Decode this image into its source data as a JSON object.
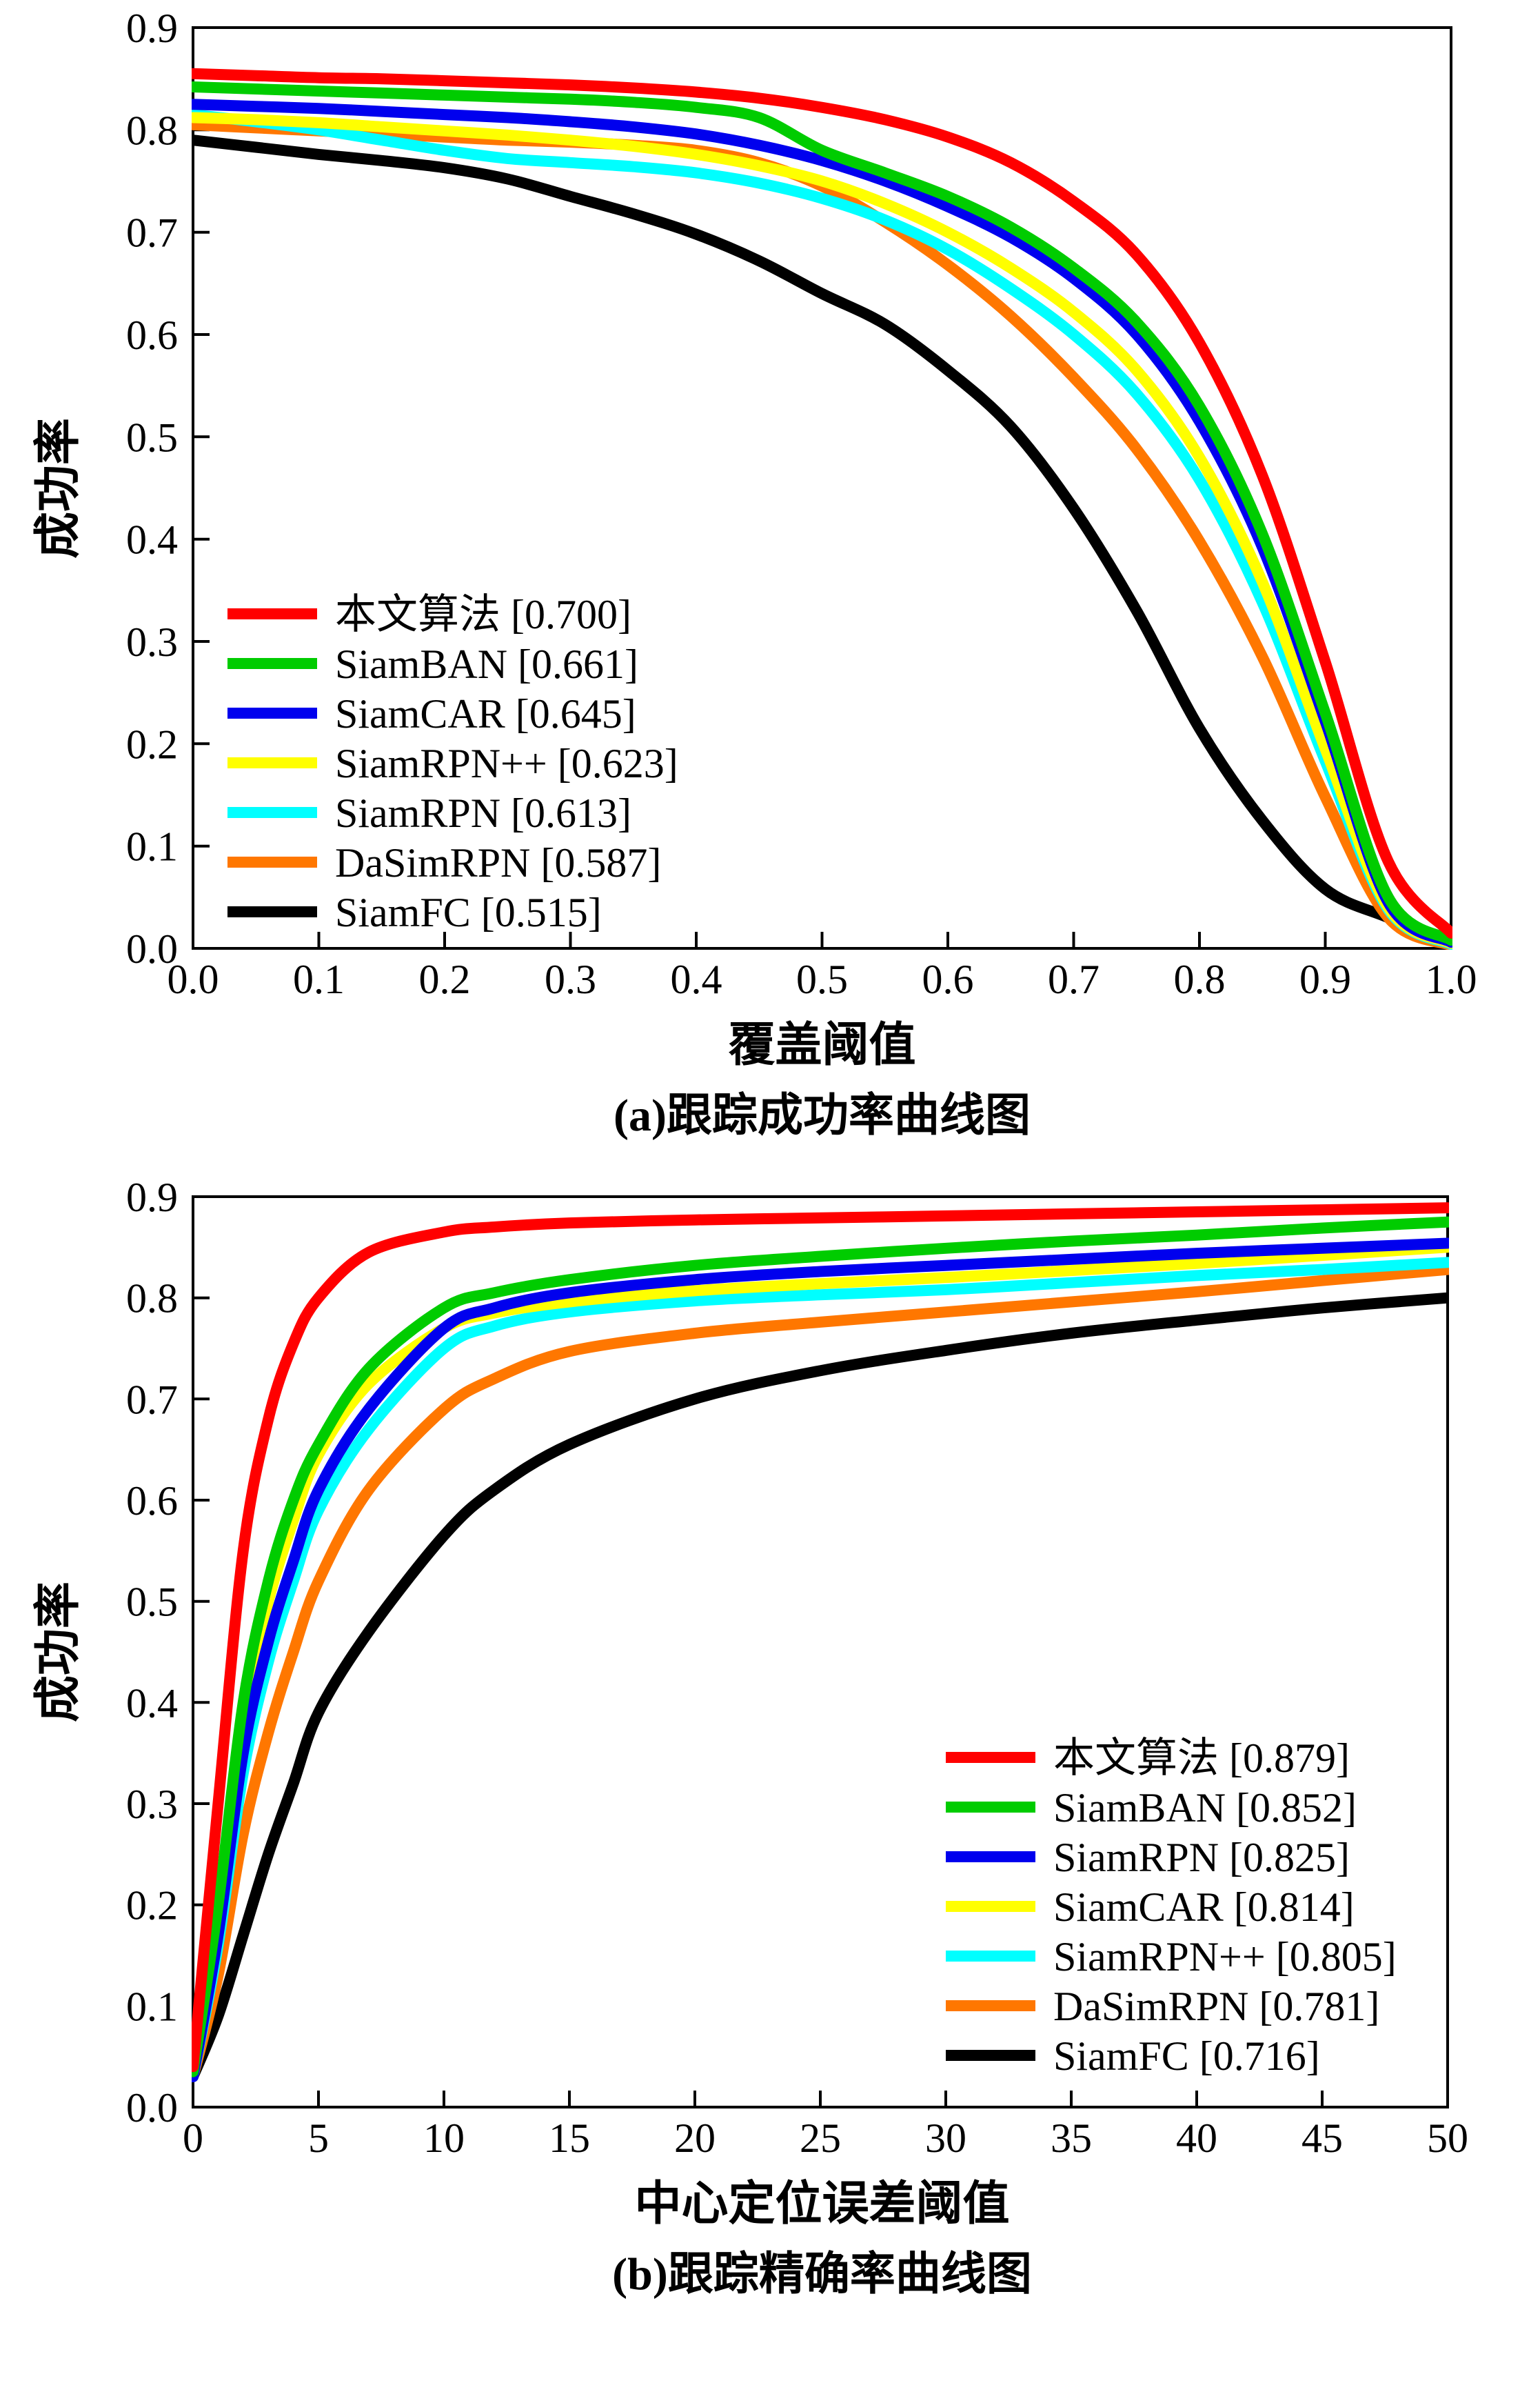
{
  "figure": {
    "background": "#ffffff",
    "axis_color": "#000000"
  },
  "chart_data": [
    {
      "id": "success-plot",
      "type": "line",
      "title": "",
      "xlabel": "覆盖阈值",
      "ylabel": "成功率",
      "caption": "(a)跟踪成功率曲线图",
      "xlim": [
        0.0,
        1.0
      ],
      "ylim": [
        0.0,
        0.9
      ],
      "grid": false,
      "legend_position": "lower-left",
      "xticks": [
        "0.0",
        "0.1",
        "0.2",
        "0.3",
        "0.4",
        "0.5",
        "0.6",
        "0.7",
        "0.8",
        "0.9",
        "1.0"
      ],
      "yticks": [
        "0.0",
        "0.1",
        "0.2",
        "0.3",
        "0.4",
        "0.5",
        "0.6",
        "0.7",
        "0.8",
        "0.9"
      ],
      "x": [
        0,
        0.05,
        0.1,
        0.15,
        0.2,
        0.25,
        0.3,
        0.35,
        0.4,
        0.45,
        0.5,
        0.55,
        0.6,
        0.65,
        0.7,
        0.75,
        0.8,
        0.85,
        0.9,
        0.95,
        1.0
      ],
      "series": [
        {
          "key": "ours",
          "name": "本文算法",
          "score": 0.7,
          "label": "本文算法 [0.700]",
          "color": "#ff0000",
          "values": [
            0.855,
            0.853,
            0.851,
            0.85,
            0.848,
            0.846,
            0.844,
            0.841,
            0.837,
            0.831,
            0.822,
            0.81,
            0.793,
            0.768,
            0.73,
            0.678,
            0.592,
            0.462,
            0.28,
            0.085,
            0.015
          ]
        },
        {
          "key": "siamban",
          "name": "SiamBAN",
          "score": 0.661,
          "label": "SiamBAN [0.661]",
          "color": "#00cc00",
          "values": [
            0.842,
            0.84,
            0.838,
            0.836,
            0.834,
            0.832,
            0.83,
            0.827,
            0.822,
            0.812,
            0.78,
            0.758,
            0.735,
            0.705,
            0.665,
            0.612,
            0.53,
            0.405,
            0.23,
            0.05,
            0.008
          ]
        },
        {
          "key": "siamcar",
          "name": "SiamCAR",
          "score": 0.645,
          "label": "SiamCAR [0.645]",
          "color": "#0000ee",
          "values": [
            0.825,
            0.823,
            0.821,
            0.818,
            0.815,
            0.812,
            0.808,
            0.803,
            0.796,
            0.785,
            0.77,
            0.75,
            0.725,
            0.695,
            0.655,
            0.6,
            0.515,
            0.392,
            0.222,
            0.045,
            0.006
          ]
        },
        {
          "key": "siamrpnpp",
          "name": "SiamRPN++",
          "score": 0.623,
          "label": "SiamRPN++ [0.623]",
          "color": "#ffff00",
          "values": [
            0.812,
            0.81,
            0.807,
            0.803,
            0.799,
            0.795,
            0.79,
            0.784,
            0.776,
            0.765,
            0.75,
            0.728,
            0.7,
            0.665,
            0.622,
            0.565,
            0.48,
            0.358,
            0.195,
            0.04,
            0.005
          ]
        },
        {
          "key": "siamrpn",
          "name": "SiamRPN",
          "score": 0.613,
          "label": "SiamRPN [0.613]",
          "color": "#00ffff",
          "values": [
            0.815,
            0.808,
            0.8,
            0.79,
            0.78,
            0.772,
            0.768,
            0.764,
            0.758,
            0.748,
            0.733,
            0.712,
            0.683,
            0.645,
            0.6,
            0.542,
            0.458,
            0.338,
            0.183,
            0.038,
            0.004
          ]
        },
        {
          "key": "dasimrpn",
          "name": "DaSimRPN",
          "score": 0.587,
          "label": "DaSimRPN [0.587]",
          "color": "#ff7700",
          "values": [
            0.805,
            0.802,
            0.799,
            0.796,
            0.793,
            0.79,
            0.788,
            0.785,
            0.78,
            0.768,
            0.745,
            0.71,
            0.668,
            0.618,
            0.558,
            0.488,
            0.398,
            0.285,
            0.148,
            0.03,
            0.003
          ]
        },
        {
          "key": "siamfc",
          "name": "SiamFC",
          "score": 0.515,
          "label": "SiamFC [0.515]",
          "color": "#000000",
          "values": [
            0.79,
            0.783,
            0.776,
            0.77,
            0.763,
            0.752,
            0.735,
            0.718,
            0.698,
            0.672,
            0.64,
            0.61,
            0.565,
            0.51,
            0.43,
            0.33,
            0.215,
            0.125,
            0.058,
            0.03,
            0.005
          ]
        }
      ]
    },
    {
      "id": "precision-plot",
      "type": "line",
      "title": "",
      "xlabel": "中心定位误差阈值",
      "ylabel": "成功率",
      "caption": "(b)跟踪精确率曲线图",
      "xlim": [
        0,
        50
      ],
      "ylim": [
        0.0,
        0.9
      ],
      "grid": false,
      "legend_position": "lower-right",
      "xticks": [
        "0",
        "5",
        "10",
        "15",
        "20",
        "25",
        "30",
        "35",
        "40",
        "45",
        "50"
      ],
      "yticks": [
        "0.0",
        "0.1",
        "0.2",
        "0.3",
        "0.4",
        "0.5",
        "0.6",
        "0.7",
        "0.8",
        "0.9"
      ],
      "x": [
        0,
        1,
        2,
        3,
        4,
        5,
        7,
        10,
        12,
        15,
        20,
        25,
        30,
        35,
        40,
        45,
        50
      ],
      "series": [
        {
          "key": "ours",
          "name": "本文算法",
          "score": 0.879,
          "label": "本文算法 [0.879]",
          "color": "#ff0000",
          "values": [
            0.04,
            0.3,
            0.55,
            0.68,
            0.755,
            0.8,
            0.845,
            0.865,
            0.87,
            0.874,
            0.877,
            0.879,
            0.881,
            0.883,
            0.885,
            0.887,
            0.889
          ]
        },
        {
          "key": "siamban",
          "name": "SiamBAN",
          "score": 0.852,
          "label": "SiamBAN [0.852]",
          "color": "#00cc00",
          "values": [
            0.035,
            0.2,
            0.4,
            0.52,
            0.6,
            0.655,
            0.73,
            0.79,
            0.805,
            0.818,
            0.832,
            0.841,
            0.849,
            0.856,
            0.862,
            0.869,
            0.875
          ]
        },
        {
          "key": "siamrpn",
          "name": "SiamRPN",
          "score": 0.825,
          "label": "SiamRPN [0.825]",
          "color": "#0000ee",
          "values": [
            0.03,
            0.17,
            0.35,
            0.46,
            0.54,
            0.61,
            0.69,
            0.77,
            0.79,
            0.805,
            0.818,
            0.826,
            0.832,
            0.838,
            0.844,
            0.849,
            0.854
          ]
        },
        {
          "key": "siamcar",
          "name": "SiamCAR",
          "score": 0.814,
          "label": "SiamCAR [0.814]",
          "color": "#ffff00",
          "values": [
            0.035,
            0.19,
            0.39,
            0.5,
            0.58,
            0.645,
            0.715,
            0.77,
            0.785,
            0.796,
            0.807,
            0.814,
            0.82,
            0.827,
            0.834,
            0.842,
            0.85
          ]
        },
        {
          "key": "siamrpnpp",
          "name": "SiamRPN++",
          "score": 0.805,
          "label": "SiamRPN++ [0.805]",
          "color": "#00ffff",
          "values": [
            0.03,
            0.16,
            0.33,
            0.44,
            0.52,
            0.59,
            0.67,
            0.75,
            0.772,
            0.786,
            0.797,
            0.803,
            0.808,
            0.815,
            0.822,
            0.828,
            0.835
          ]
        },
        {
          "key": "dasimrpn",
          "name": "DaSimRPN",
          "score": 0.781,
          "label": "DaSimRPN [0.781]",
          "color": "#ff7700",
          "values": [
            0.03,
            0.13,
            0.27,
            0.37,
            0.45,
            0.52,
            0.61,
            0.69,
            0.72,
            0.747,
            0.765,
            0.776,
            0.786,
            0.796,
            0.806,
            0.817,
            0.828
          ]
        },
        {
          "key": "siamfc",
          "name": "SiamFC",
          "score": 0.716,
          "label": "SiamFC [0.716]",
          "color": "#000000",
          "values": [
            0.03,
            0.09,
            0.17,
            0.25,
            0.32,
            0.39,
            0.47,
            0.565,
            0.61,
            0.655,
            0.7,
            0.728,
            0.748,
            0.765,
            0.778,
            0.79,
            0.8
          ]
        }
      ]
    }
  ]
}
